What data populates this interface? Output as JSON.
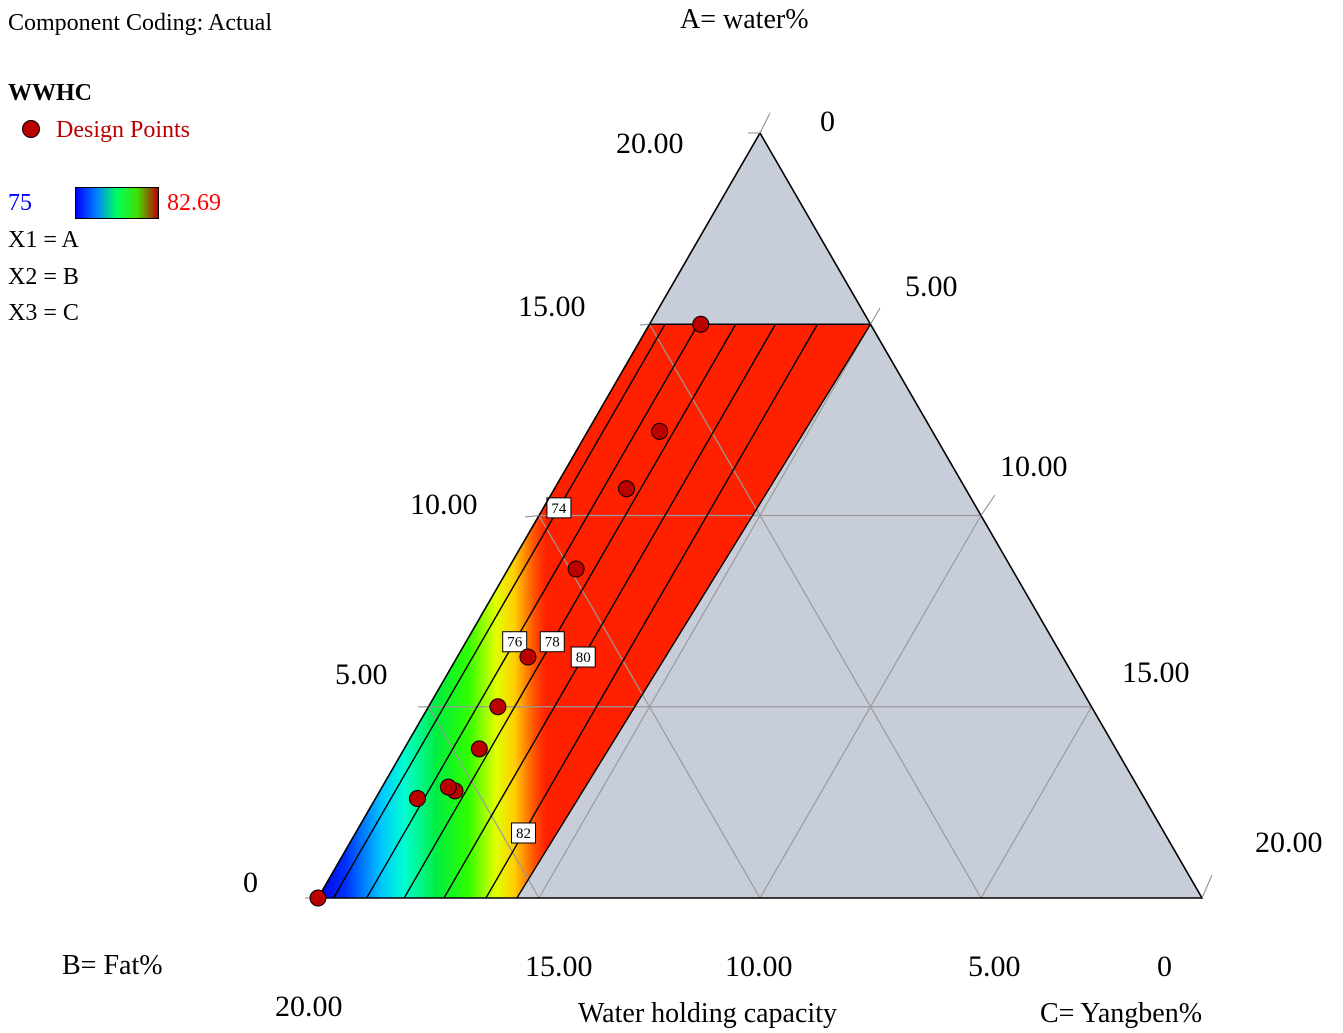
{
  "header": {
    "component_coding": "Component Coding: Actual",
    "a_title": "A= water%"
  },
  "legend": {
    "response": "WWHC",
    "design_points_label": "Design Points",
    "design_point_color": "#bb0000",
    "range_min": "75",
    "range_max": "82.69",
    "min_color": "#0000ff",
    "max_color": "#ff0000",
    "x1": "X1 = A",
    "x2": "X2 = B",
    "x3": "X3 = C"
  },
  "axes": {
    "b_title": "B= Fat%",
    "c_title": "C= Yangben%",
    "response_title": "Water holding capacity",
    "a_ticks": [
      "0",
      "5.00",
      "10.00",
      "15.00",
      "20.00"
    ],
    "b_ticks": [
      "20.00",
      "15.00",
      "10.00",
      "5.00",
      "0"
    ],
    "c_ticks": [
      "20.00",
      "15.00",
      "10.00",
      "5.00",
      "0"
    ]
  },
  "chart_data": {
    "type": "ternary-contour",
    "axes": [
      "A= water%",
      "B= Fat%",
      "C= Yangben%"
    ],
    "total": 20,
    "response": "Water holding capacity",
    "color_range": [
      75,
      82.69
    ],
    "constraint_region": [
      [
        0,
        20,
        0
      ],
      [
        15,
        5,
        0
      ],
      [
        15,
        0,
        5
      ],
      [
        0,
        15.5,
        4.5
      ]
    ],
    "contour_levels": [
      74,
      76,
      78,
      80,
      82
    ],
    "design_points": [
      {
        "A": 15.0,
        "B": 3.84,
        "C": 1.16
      },
      {
        "A": 12.2,
        "B": 6.17,
        "C": 1.63
      },
      {
        "A": 10.7,
        "B": 7.67,
        "C": 1.63
      },
      {
        "A": 8.6,
        "B": 9.86,
        "C": 1.54
      },
      {
        "A": 6.3,
        "B": 12.1,
        "C": 1.6
      },
      {
        "A": 5.0,
        "B": 13.43,
        "C": 1.57
      },
      {
        "A": 3.9,
        "B": 14.4,
        "C": 1.7
      },
      {
        "A": 2.8,
        "B": 15.5,
        "C": 1.7
      },
      {
        "A": 2.9,
        "B": 15.6,
        "C": 1.5
      },
      {
        "A": 2.6,
        "B": 16.45,
        "C": 0.95
      },
      {
        "A": 0.0,
        "B": 20.0,
        "C": 0.0
      }
    ]
  }
}
